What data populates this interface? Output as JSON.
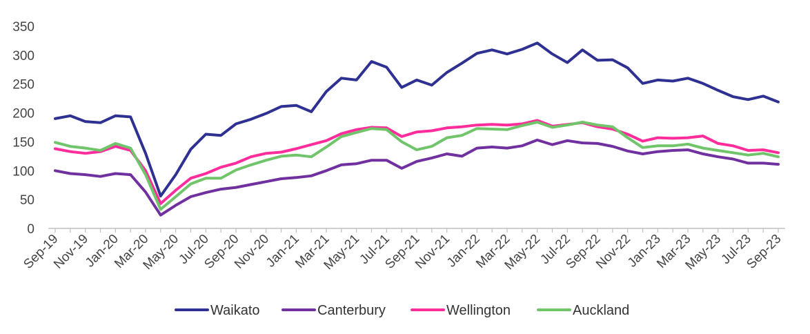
{
  "chart_data": {
    "type": "line",
    "title": "",
    "xlabel": "",
    "ylabel": "",
    "ylim": [
      0,
      350
    ],
    "yticks": [
      0,
      50,
      100,
      150,
      200,
      250,
      300,
      350
    ],
    "grid": false,
    "legend_position": "bottom",
    "x": [
      "Sep-19",
      "Oct-19",
      "Nov-19",
      "Dec-19",
      "Jan-20",
      "Feb-20",
      "Mar-20",
      "Apr-20",
      "May-20",
      "Jun-20",
      "Jul-20",
      "Aug-20",
      "Sep-20",
      "Oct-20",
      "Nov-20",
      "Dec-20",
      "Jan-21",
      "Feb-21",
      "Mar-21",
      "Apr-21",
      "May-21",
      "Jun-21",
      "Jul-21",
      "Aug-21",
      "Sep-21",
      "Oct-21",
      "Nov-21",
      "Dec-21",
      "Jan-22",
      "Feb-22",
      "Mar-22",
      "Apr-22",
      "May-22",
      "Jun-22",
      "Jul-22",
      "Aug-22",
      "Sep-22",
      "Oct-22",
      "Nov-22",
      "Dec-22",
      "Jan-23",
      "Feb-23",
      "Mar-23",
      "Apr-23",
      "May-23",
      "Jun-23",
      "Jul-23",
      "Aug-23",
      "Sep-23"
    ],
    "x_tick_labels": [
      "Sep-19",
      "Nov-19",
      "Jan-20",
      "Mar-20",
      "May-20",
      "Jul-20",
      "Sep-20",
      "Nov-20",
      "Jan-21",
      "Mar-21",
      "May-21",
      "Jul-21",
      "Sep-21",
      "Nov-21",
      "Jan-22",
      "Mar-22",
      "May-22",
      "Jul-22",
      "Sep-22",
      "Nov-22",
      "Jan-23",
      "Mar-23",
      "May-23",
      "Jul-23",
      "Sep-23"
    ],
    "series": [
      {
        "name": "Waikato",
        "color": "#2E3192",
        "values": [
          190,
          195,
          185,
          183,
          195,
          193,
          130,
          56,
          93,
          137,
          163,
          161,
          181,
          189,
          199,
          211,
          213,
          202,
          237,
          260,
          257,
          289,
          279,
          244,
          257,
          248,
          270,
          286,
          303,
          309,
          302,
          310,
          321,
          302,
          287,
          309,
          291,
          292,
          278,
          251,
          257,
          255,
          260,
          251,
          239,
          228,
          223,
          229,
          219
        ]
      },
      {
        "name": "Canterbury",
        "color": "#7030A0",
        "values": [
          100,
          95,
          93,
          90,
          95,
          93,
          63,
          23,
          40,
          55,
          62,
          68,
          71,
          76,
          81,
          86,
          88,
          91,
          100,
          110,
          112,
          118,
          118,
          104,
          116,
          122,
          129,
          125,
          139,
          141,
          139,
          143,
          153,
          145,
          152,
          148,
          147,
          142,
          134,
          129,
          133,
          135,
          136,
          129,
          124,
          120,
          113,
          113,
          111
        ]
      },
      {
        "name": "Wellington",
        "color": "#FF2D9B",
        "values": [
          138,
          133,
          130,
          133,
          142,
          135,
          100,
          43,
          66,
          87,
          95,
          106,
          113,
          124,
          130,
          132,
          138,
          145,
          152,
          164,
          171,
          175,
          174,
          159,
          167,
          169,
          174,
          176,
          179,
          180,
          179,
          181,
          187,
          177,
          180,
          183,
          176,
          172,
          163,
          151,
          157,
          156,
          157,
          160,
          147,
          143,
          135,
          136,
          131
        ]
      },
      {
        "name": "Auckland",
        "color": "#70C46A",
        "values": [
          149,
          142,
          139,
          135,
          147,
          139,
          93,
          33,
          55,
          77,
          87,
          87,
          101,
          110,
          118,
          125,
          127,
          124,
          141,
          159,
          166,
          173,
          171,
          150,
          136,
          142,
          157,
          161,
          173,
          172,
          171,
          178,
          184,
          175,
          179,
          184,
          179,
          176,
          157,
          140,
          143,
          143,
          146,
          139,
          135,
          131,
          127,
          130,
          124
        ]
      }
    ]
  }
}
